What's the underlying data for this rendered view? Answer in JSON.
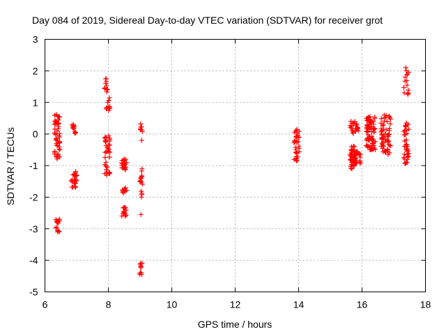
{
  "chart_data": {
    "type": "scatter",
    "title": "Day 084 of 2019, Sidereal Day-to-day VTEC variation (SDTVAR) for receiver grot",
    "xlabel": "GPS time / hours",
    "ylabel": "SDTVAR / TECUs",
    "xlim": [
      6,
      18
    ],
    "ylim": [
      -5,
      3
    ],
    "x_ticks": [
      "6",
      "8",
      "10",
      "12",
      "14",
      "16",
      "18"
    ],
    "y_ticks": [
      "3",
      "2",
      "1",
      "0",
      "-1",
      "-2",
      "-3",
      "-4",
      "-5"
    ],
    "grid": true,
    "marker": "+",
    "color": "#ff0000",
    "clusters": [
      {
        "x": [
          6.3,
          6.47
        ],
        "y": [
          0.0,
          0.6
        ],
        "n": 22
      },
      {
        "x": [
          6.3,
          6.47
        ],
        "y": [
          -0.8,
          0.0
        ],
        "n": 24
      },
      {
        "x": [
          6.33,
          6.47
        ],
        "y": [
          -3.1,
          -2.7
        ],
        "n": 12
      },
      {
        "x": [
          6.85,
          7.0
        ],
        "y": [
          0.0,
          0.3
        ],
        "n": 10
      },
      {
        "x": [
          6.82,
          7.0
        ],
        "y": [
          -1.7,
          -1.15
        ],
        "n": 22
      },
      {
        "x": [
          7.88,
          7.98
        ],
        "y": [
          1.3,
          1.75
        ],
        "n": 8
      },
      {
        "x": [
          7.93,
          8.05
        ],
        "y": [
          0.75,
          1.15
        ],
        "n": 10
      },
      {
        "x": [
          7.88,
          8.05
        ],
        "y": [
          -1.35,
          -0.05
        ],
        "n": 34
      },
      {
        "x": [
          8.42,
          8.58
        ],
        "y": [
          -1.15,
          -0.75
        ],
        "n": 24
      },
      {
        "x": [
          8.45,
          8.58
        ],
        "y": [
          -1.9,
          -1.7
        ],
        "n": 10
      },
      {
        "x": [
          8.42,
          8.58
        ],
        "y": [
          -2.6,
          -2.3
        ],
        "n": 12
      },
      {
        "x": [
          8.98,
          9.08
        ],
        "y": [
          0.05,
          0.3
        ],
        "n": 6
      },
      {
        "x": [
          8.98,
          9.08
        ],
        "y": [
          -2.05,
          -1.05
        ],
        "n": 16
      },
      {
        "x": [
          8.98,
          9.08
        ],
        "y": [
          -4.45,
          -4.05
        ],
        "n": 8
      },
      {
        "x": [
          13.85,
          14.02
        ],
        "y": [
          -0.85,
          0.15
        ],
        "n": 30
      },
      {
        "x": [
          15.62,
          15.78
        ],
        "y": [
          -1.15,
          -0.35
        ],
        "n": 40
      },
      {
        "x": [
          15.62,
          15.9
        ],
        "y": [
          0.0,
          0.4
        ],
        "n": 24
      },
      {
        "x": [
          15.72,
          15.95
        ],
        "y": [
          -0.95,
          -0.5
        ],
        "n": 30
      },
      {
        "x": [
          16.12,
          16.42
        ],
        "y": [
          -0.5,
          0.55
        ],
        "n": 80
      },
      {
        "x": [
          16.6,
          16.9
        ],
        "y": [
          -0.6,
          0.6
        ],
        "n": 60
      },
      {
        "x": [
          17.32,
          17.48
        ],
        "y": [
          -0.95,
          0.35
        ],
        "n": 36
      },
      {
        "x": [
          17.32,
          17.48
        ],
        "y": [
          1.25,
          2.1
        ],
        "n": 12
      }
    ],
    "points": [
      [
        6.4,
        0.55
      ],
      [
        6.36,
        0.62
      ],
      [
        6.43,
        0.45
      ],
      [
        6.38,
        -0.35
      ],
      [
        6.42,
        -0.65
      ],
      [
        6.36,
        -2.95
      ],
      [
        6.4,
        -3.1
      ],
      [
        6.46,
        -2.7
      ],
      [
        6.9,
        0.3
      ],
      [
        6.95,
        -1.55
      ],
      [
        7.93,
        1.75
      ],
      [
        7.92,
        1.6
      ],
      [
        7.95,
        1.4
      ],
      [
        8.01,
        0.75
      ],
      [
        7.9,
        -0.1
      ],
      [
        7.95,
        -1.3
      ],
      [
        8.5,
        -0.8
      ],
      [
        8.52,
        -1.8
      ],
      [
        8.5,
        -2.45
      ],
      [
        8.53,
        -2.6
      ],
      [
        9.02,
        0.32
      ],
      [
        9.02,
        0.15
      ],
      [
        9.05,
        -0.2
      ],
      [
        9.03,
        -2.55
      ],
      [
        9.02,
        -4.1
      ],
      [
        9.05,
        -4.45
      ],
      [
        13.95,
        0.15
      ],
      [
        13.92,
        -0.5
      ],
      [
        13.95,
        -0.85
      ],
      [
        15.65,
        0.4
      ],
      [
        15.68,
        -1.1
      ],
      [
        15.8,
        0.1
      ],
      [
        16.25,
        0.55
      ],
      [
        16.3,
        -0.45
      ],
      [
        16.7,
        0.6
      ],
      [
        16.82,
        -0.65
      ],
      [
        17.38,
        2.1
      ],
      [
        17.42,
        1.55
      ],
      [
        17.45,
        1.25
      ],
      [
        17.4,
        0.35
      ],
      [
        17.42,
        -0.9
      ]
    ]
  }
}
